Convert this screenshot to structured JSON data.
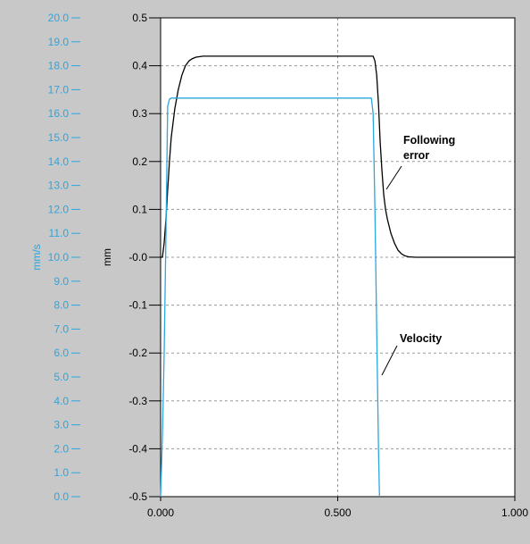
{
  "chart_data": {
    "type": "line",
    "colors": {
      "velocity": "#2aa6e0",
      "following_error": "#000000",
      "plot_background": "#ffffff",
      "frame_background": "#c8c8c8",
      "grid": "#9a9a9a"
    },
    "grid": true,
    "x_axis": {
      "range": [
        0,
        1
      ],
      "ticks": [
        "0.000",
        "0.500",
        "1.000"
      ],
      "tick_values": [
        0,
        0.5,
        1
      ]
    },
    "y_axis_left": {
      "label": "mm/s",
      "range": [
        0,
        20
      ],
      "ticks": [
        "20.0",
        "19.0",
        "18.0",
        "17.0",
        "16.0",
        "15.0",
        "14.0",
        "13.0",
        "12.0",
        "11.0",
        "10.0",
        "9.0",
        "8.0",
        "7.0",
        "6.0",
        "5.0",
        "4.0",
        "3.0",
        "2.0",
        "1.0",
        "0.0"
      ]
    },
    "y_axis_right": {
      "label": "mm",
      "range": [
        -0.5,
        0.5
      ],
      "ticks": [
        "0.5",
        "0.4",
        "0.3",
        "0.2",
        "0.1",
        "-0.0",
        "-0.1",
        "-0.2",
        "-0.3",
        "-0.4",
        "-0.5"
      ]
    },
    "annotations": [
      {
        "text_lines": [
          "Following",
          "error"
        ],
        "series": "following_error"
      },
      {
        "text_lines": [
          "Velocity"
        ],
        "series": "velocity"
      }
    ],
    "series": [
      {
        "key": "following_error",
        "axis": "mm",
        "x": [
          0.0,
          0.005,
          0.01,
          0.015,
          0.02,
          0.025,
          0.03,
          0.04,
          0.05,
          0.06,
          0.07,
          0.08,
          0.09,
          0.1,
          0.12,
          0.15,
          0.2,
          0.3,
          0.4,
          0.5,
          0.6,
          0.605,
          0.61,
          0.615,
          0.62,
          0.625,
          0.63,
          0.635,
          0.64,
          0.65,
          0.66,
          0.67,
          0.68,
          0.69,
          0.7,
          0.72,
          0.75,
          0.8,
          0.9,
          1.0
        ],
        "y": [
          0.0,
          0.0,
          0.03,
          0.08,
          0.14,
          0.2,
          0.25,
          0.31,
          0.35,
          0.38,
          0.4,
          0.41,
          0.415,
          0.418,
          0.42,
          0.42,
          0.42,
          0.42,
          0.42,
          0.42,
          0.42,
          0.41,
          0.38,
          0.32,
          0.24,
          0.18,
          0.13,
          0.1,
          0.08,
          0.05,
          0.03,
          0.015,
          0.007,
          0.003,
          0.001,
          0.0,
          0.0,
          0.0,
          0.0,
          0.0
        ]
      },
      {
        "key": "velocity",
        "axis": "mm/s",
        "x": [
          0.0,
          0.005,
          0.01,
          0.015,
          0.02,
          0.025,
          0.03,
          0.5,
          0.595,
          0.6,
          0.605,
          0.61,
          0.615,
          0.618
        ],
        "y": [
          0.0,
          2.5,
          6.0,
          11.0,
          16.3,
          16.6,
          16.65,
          16.65,
          16.65,
          16.0,
          12.0,
          7.0,
          2.0,
          0.0
        ]
      }
    ]
  }
}
